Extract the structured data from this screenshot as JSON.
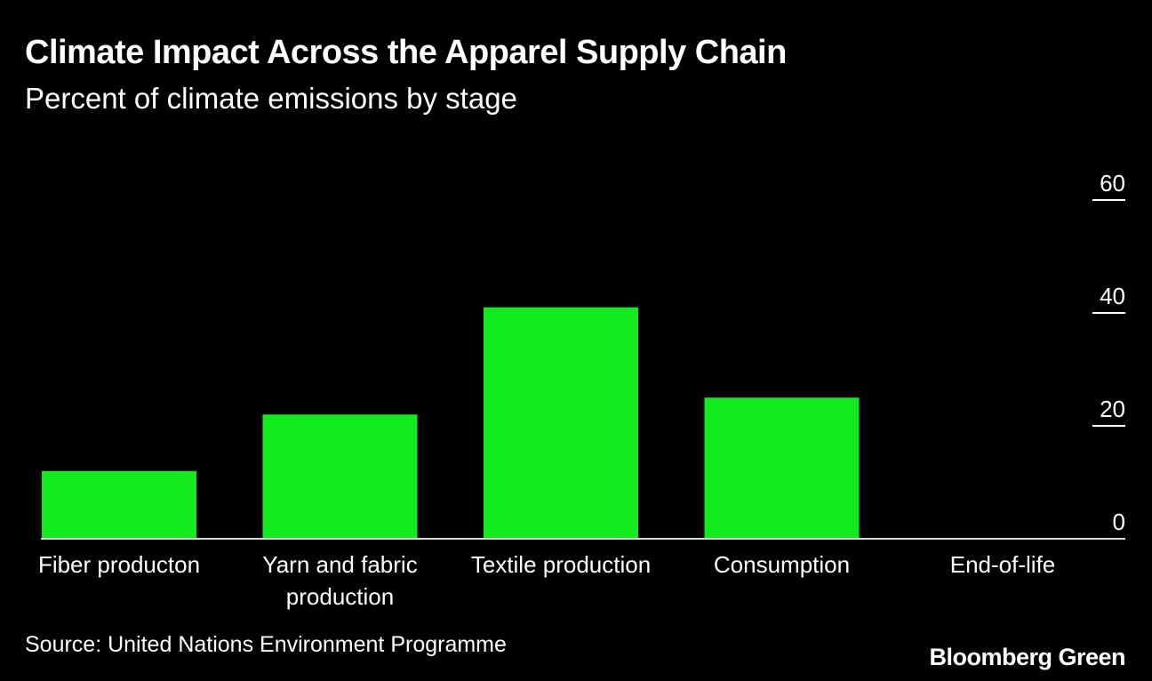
{
  "header": {
    "title": "Climate Impact Across the Apparel Supply Chain",
    "subtitle": "Percent of climate emissions by stage"
  },
  "footer": {
    "source": "Source: United Nations Environment Programme",
    "brand": "Bloomberg Green"
  },
  "colors": {
    "background": "#000000",
    "bar": "#14eb1f",
    "text": "#ffffff"
  },
  "chart_data": {
    "type": "bar",
    "title": "Climate Impact Across the Apparel Supply Chain",
    "subtitle": "Percent of climate emissions by stage",
    "categories": [
      [
        "Fiber producton"
      ],
      [
        "Yarn and fabric",
        "production"
      ],
      [
        "Textile production"
      ],
      [
        "Consumption"
      ],
      [
        "End-of-life"
      ]
    ],
    "values": [
      12,
      22,
      41,
      25,
      0
    ],
    "ylim": [
      0,
      60
    ],
    "yticks": [
      0,
      20,
      40,
      60
    ],
    "grid": false,
    "y_axis_side": "right"
  }
}
